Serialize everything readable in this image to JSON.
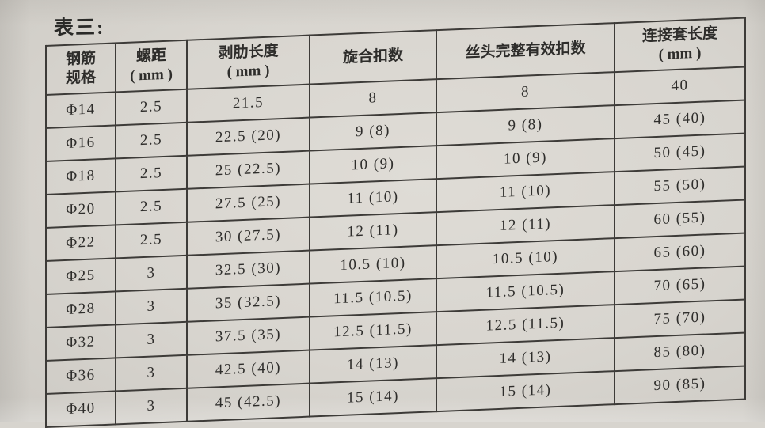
{
  "title": "表三:",
  "table": {
    "columns": [
      {
        "key": "spec",
        "line1": "钢筋",
        "line2": "规格"
      },
      {
        "key": "pitch",
        "line1": "螺距",
        "line2": "( mm )"
      },
      {
        "key": "strip",
        "line1": "剥肋长度",
        "line2": "( mm )"
      },
      {
        "key": "turns",
        "line1": "旋合扣数",
        "line2": ""
      },
      {
        "key": "effective",
        "line1": "丝头完整有效扣数",
        "line2": ""
      },
      {
        "key": "sleeve",
        "line1": "连接套长度",
        "line2": "( mm )"
      }
    ],
    "rows": [
      {
        "spec": "Φ14",
        "pitch": "2.5",
        "strip": "21.5",
        "turns": "8",
        "effective": "8",
        "sleeve": "40"
      },
      {
        "spec": "Φ16",
        "pitch": "2.5",
        "strip": "22.5 (20)",
        "turns": "9 (8)",
        "effective": "9 (8)",
        "sleeve": "45 (40)"
      },
      {
        "spec": "Φ18",
        "pitch": "2.5",
        "strip": "25 (22.5)",
        "turns": "10 (9)",
        "effective": "10 (9)",
        "sleeve": "50 (45)"
      },
      {
        "spec": "Φ20",
        "pitch": "2.5",
        "strip": "27.5 (25)",
        "turns": "11 (10)",
        "effective": "11 (10)",
        "sleeve": "55 (50)"
      },
      {
        "spec": "Φ22",
        "pitch": "2.5",
        "strip": "30 (27.5)",
        "turns": "12 (11)",
        "effective": "12 (11)",
        "sleeve": "60 (55)"
      },
      {
        "spec": "Φ25",
        "pitch": "3",
        "strip": "32.5 (30)",
        "turns": "10.5 (10)",
        "effective": "10.5 (10)",
        "sleeve": "65 (60)"
      },
      {
        "spec": "Φ28",
        "pitch": "3",
        "strip": "35 (32.5)",
        "turns": "11.5 (10.5)",
        "effective": "11.5 (10.5)",
        "sleeve": "70 (65)"
      },
      {
        "spec": "Φ32",
        "pitch": "3",
        "strip": "37.5 (35)",
        "turns": "12.5 (11.5)",
        "effective": "12.5 (11.5)",
        "sleeve": "75 (70)"
      },
      {
        "spec": "Φ36",
        "pitch": "3",
        "strip": "42.5 (40)",
        "turns": "14 (13)",
        "effective": "14 (13)",
        "sleeve": "85 (80)"
      },
      {
        "spec": "Φ40",
        "pitch": "3",
        "strip": "45 (42.5)",
        "turns": "15 (14)",
        "effective": "15 (14)",
        "sleeve": "90 (85)"
      }
    ]
  },
  "colors": {
    "paper": "#d8d5cf",
    "border": "#3d3b38",
    "text": "#2e2d2b"
  }
}
